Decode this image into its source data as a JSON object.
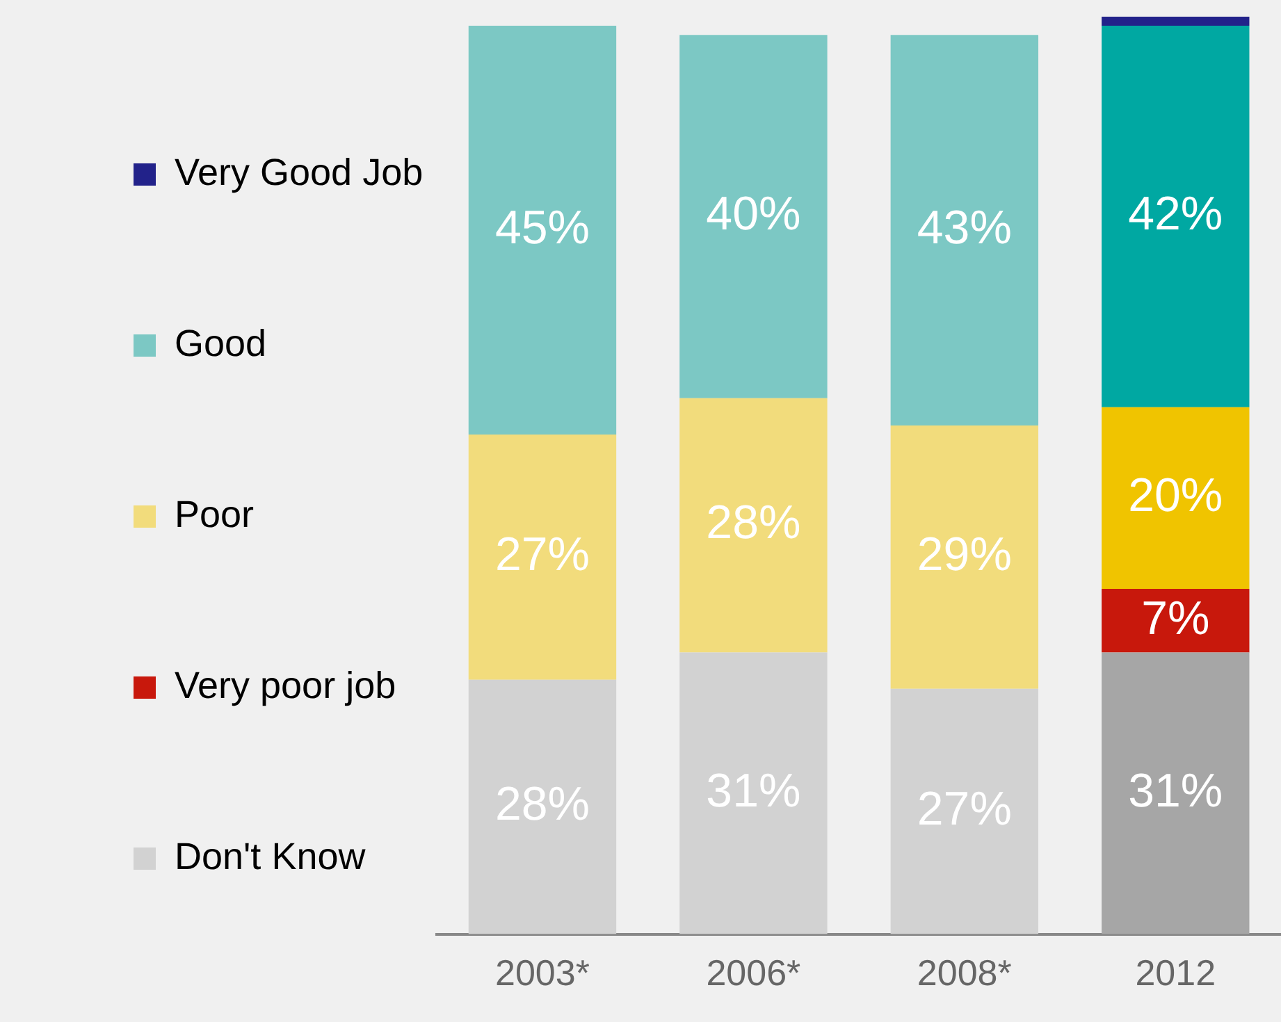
{
  "chart_data": {
    "type": "bar",
    "stacked": true,
    "categories": [
      "2003*",
      "2006*",
      "2008*",
      "2012"
    ],
    "legend": "left",
    "grid": false,
    "series": [
      {
        "name": "Don't Know",
        "colors": [
          "#d2d2d2",
          "#d2d2d2",
          "#d2d2d2",
          "#a6a6a6"
        ],
        "values": [
          28,
          31,
          27,
          31
        ],
        "value_labels": [
          "28%",
          "31%",
          "27%",
          "31%"
        ]
      },
      {
        "name": "Very poor job",
        "color": "#c8180c",
        "values": [
          null,
          null,
          null,
          7
        ],
        "value_labels": [
          null,
          null,
          null,
          "7%"
        ]
      },
      {
        "name": "Poor",
        "colors": [
          "#f2dc7c",
          "#f2dc7c",
          "#f2dc7c",
          "#f0c400"
        ],
        "values": [
          27,
          28,
          29,
          20
        ],
        "value_labels": [
          "27%",
          "28%",
          "29%",
          "20%"
        ]
      },
      {
        "name": "Good",
        "colors": [
          "#7cc8c4",
          "#7cc8c4",
          "#7cc8c4",
          "#00a8a2"
        ],
        "values": [
          45,
          40,
          43,
          42
        ],
        "value_labels": [
          "45%",
          "40%",
          "43%",
          "42%"
        ]
      },
      {
        "name": "Very Good Job",
        "color": "#22228a",
        "values": [
          null,
          null,
          null,
          1
        ],
        "value_labels": [
          null,
          null,
          null,
          null
        ]
      }
    ]
  }
}
